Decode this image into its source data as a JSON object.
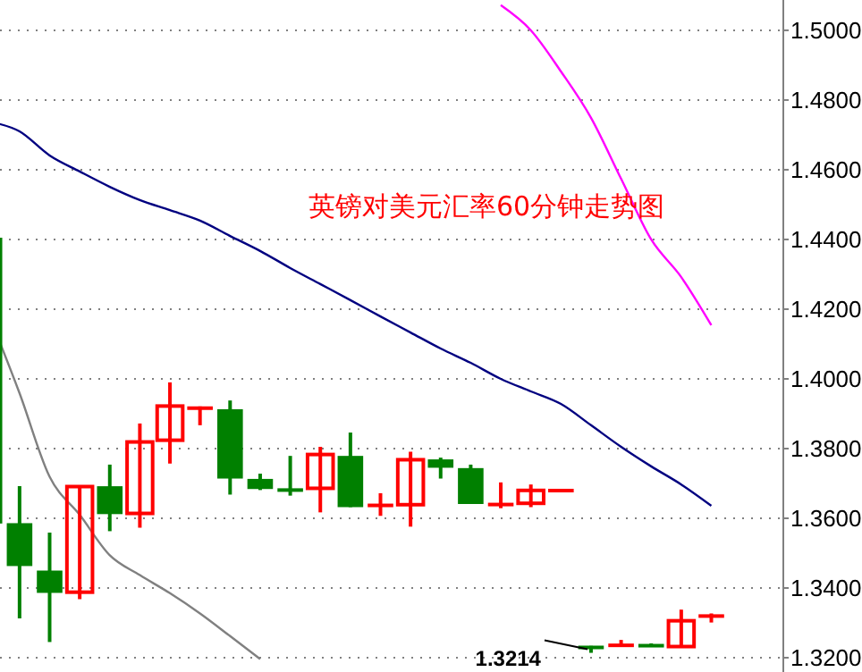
{
  "chart_data": {
    "type": "candlestick",
    "title": "英镑对美元汇率60分钟走势图",
    "categories": [
      null,
      null,
      null,
      null,
      null,
      null,
      null,
      null,
      null,
      null,
      null,
      null,
      null,
      null,
      null,
      null,
      null,
      null,
      null,
      null,
      null,
      null,
      null,
      null,
      null
    ],
    "ohlc": [
      [
        1.4405,
        1.4405,
        1.3585,
        1.3585
      ],
      [
        1.3586,
        1.3692,
        1.3313,
        1.3463
      ],
      [
        1.345,
        1.3559,
        1.3245,
        1.3386
      ],
      [
        1.3388,
        1.3691,
        1.3368,
        1.3691
      ],
      [
        1.3692,
        1.3754,
        1.3563,
        1.3612
      ],
      [
        1.3614,
        1.3872,
        1.3573,
        1.3819
      ],
      [
        1.3824,
        1.399,
        1.3757,
        1.3922
      ],
      [
        1.3915,
        1.3921,
        1.3867,
        1.3917
      ],
      [
        1.3913,
        1.3938,
        1.3668,
        1.3714
      ],
      [
        1.3713,
        1.3728,
        1.3681,
        1.3684
      ],
      [
        1.3682,
        1.3779,
        1.3665,
        1.368
      ],
      [
        1.3686,
        1.3805,
        1.3617,
        1.3783
      ],
      [
        1.3779,
        1.3846,
        1.3632,
        1.3632
      ],
      [
        1.3636,
        1.3672,
        1.3607,
        1.3638
      ],
      [
        1.3639,
        1.3791,
        1.3576,
        1.3768
      ],
      [
        1.3769,
        1.3774,
        1.3714,
        1.3745
      ],
      [
        1.3744,
        1.3754,
        1.3641,
        1.3641
      ],
      [
        1.3639,
        1.3703,
        1.3629,
        1.364
      ],
      [
        1.3643,
        1.3697,
        1.3632,
        1.368
      ],
      [
        1.3679,
        1.368,
        1.3679,
        1.368
      ],
      [
        1.3231,
        1.3234,
        1.3214,
        1.3228
      ],
      [
        1.3235,
        1.3251,
        1.3235,
        1.3236
      ],
      [
        1.3235,
        1.3241,
        1.3234,
        1.3234
      ],
      [
        1.3232,
        1.3338,
        1.3232,
        1.3306
      ],
      [
        1.3319,
        1.3327,
        1.3301,
        1.332
      ]
    ],
    "series": [
      {
        "type": "line",
        "color": "#808080",
        "values": [
          1.418,
          1.3959,
          1.3719,
          1.361,
          1.3494,
          1.3437,
          1.3385,
          1.3327,
          1.3262,
          1.3196,
          null,
          null,
          null,
          null,
          null,
          null,
          null,
          null,
          null,
          null,
          null,
          null,
          null,
          null,
          null
        ]
      },
      {
        "type": "line",
        "color": "#000080",
        "values": [
          1.4738,
          1.471,
          1.4641,
          1.4595,
          1.4551,
          1.4513,
          1.4484,
          1.4454,
          1.441,
          1.4367,
          1.4318,
          1.4272,
          1.4226,
          1.4179,
          1.4133,
          1.4087,
          1.4046,
          1.4,
          1.3964,
          1.3928,
          1.3867,
          1.3805,
          1.3749,
          1.3697,
          1.3636
        ]
      },
      {
        "type": "line",
        "color": "#ff00ff",
        "values": [
          null,
          null,
          null,
          null,
          null,
          null,
          null,
          null,
          null,
          null,
          null,
          null,
          null,
          null,
          null,
          null,
          null,
          1.5072,
          1.5,
          1.4882,
          1.4749,
          1.4574,
          1.44,
          1.4292,
          1.4154
        ]
      }
    ],
    "annotations": [
      "1.3214"
    ],
    "ylim": [
      1.3159,
      1.5087
    ],
    "yticks": [
      {
        "value": 1.32,
        "label": "1.3200"
      },
      {
        "value": 1.34,
        "label": "1.3400"
      },
      {
        "value": 1.36,
        "label": "1.3600"
      },
      {
        "value": 1.38,
        "label": "1.3800"
      },
      {
        "value": 1.4,
        "label": "1.4000"
      },
      {
        "value": 1.42,
        "label": "1.4200"
      },
      {
        "value": 1.44,
        "label": "1.4400"
      },
      {
        "value": 1.46,
        "label": "1.4600"
      },
      {
        "value": 1.48,
        "label": "1.4800"
      },
      {
        "value": 1.5,
        "label": "1.5000"
      }
    ],
    "grid": "y",
    "tick_labels": "y"
  }
}
